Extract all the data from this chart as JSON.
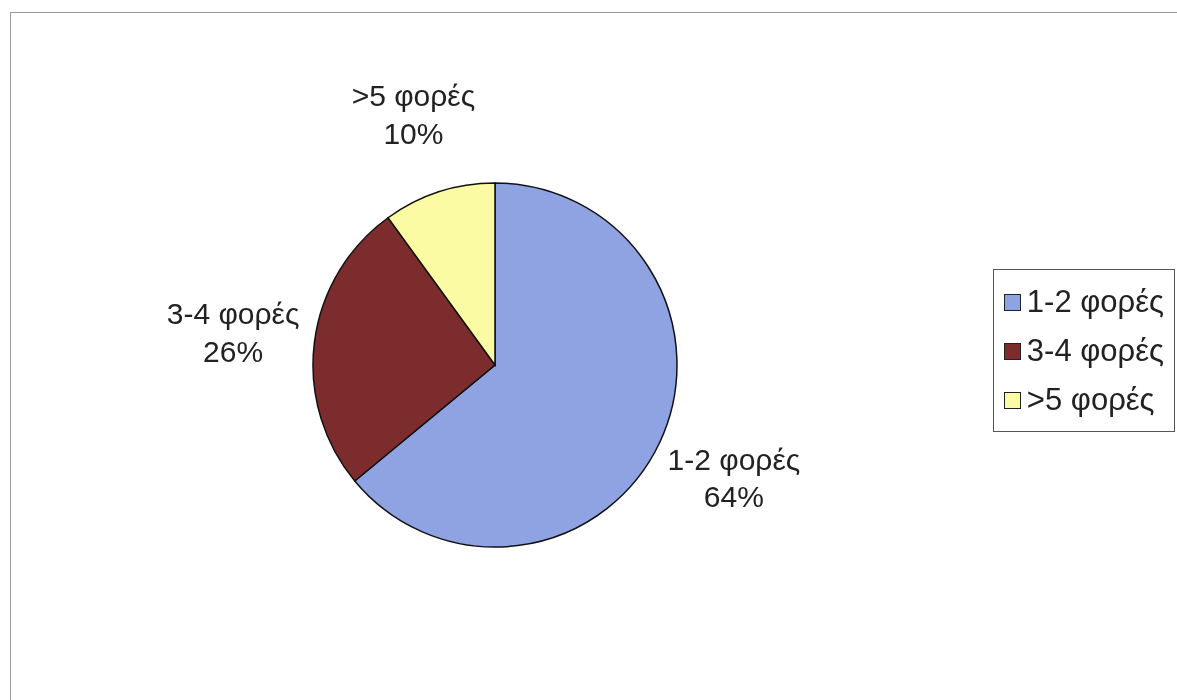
{
  "chart_data": {
    "type": "pie",
    "categories": [
      "1-2 φορές",
      "3-4 φορές",
      ">5 φορές"
    ],
    "values": [
      64,
      26,
      10
    ],
    "colors": [
      "#8fa3e3",
      "#7c2c2c",
      "#fbfba3"
    ],
    "value_labels": [
      "64%",
      "26%",
      "10%"
    ],
    "legend": "right"
  }
}
